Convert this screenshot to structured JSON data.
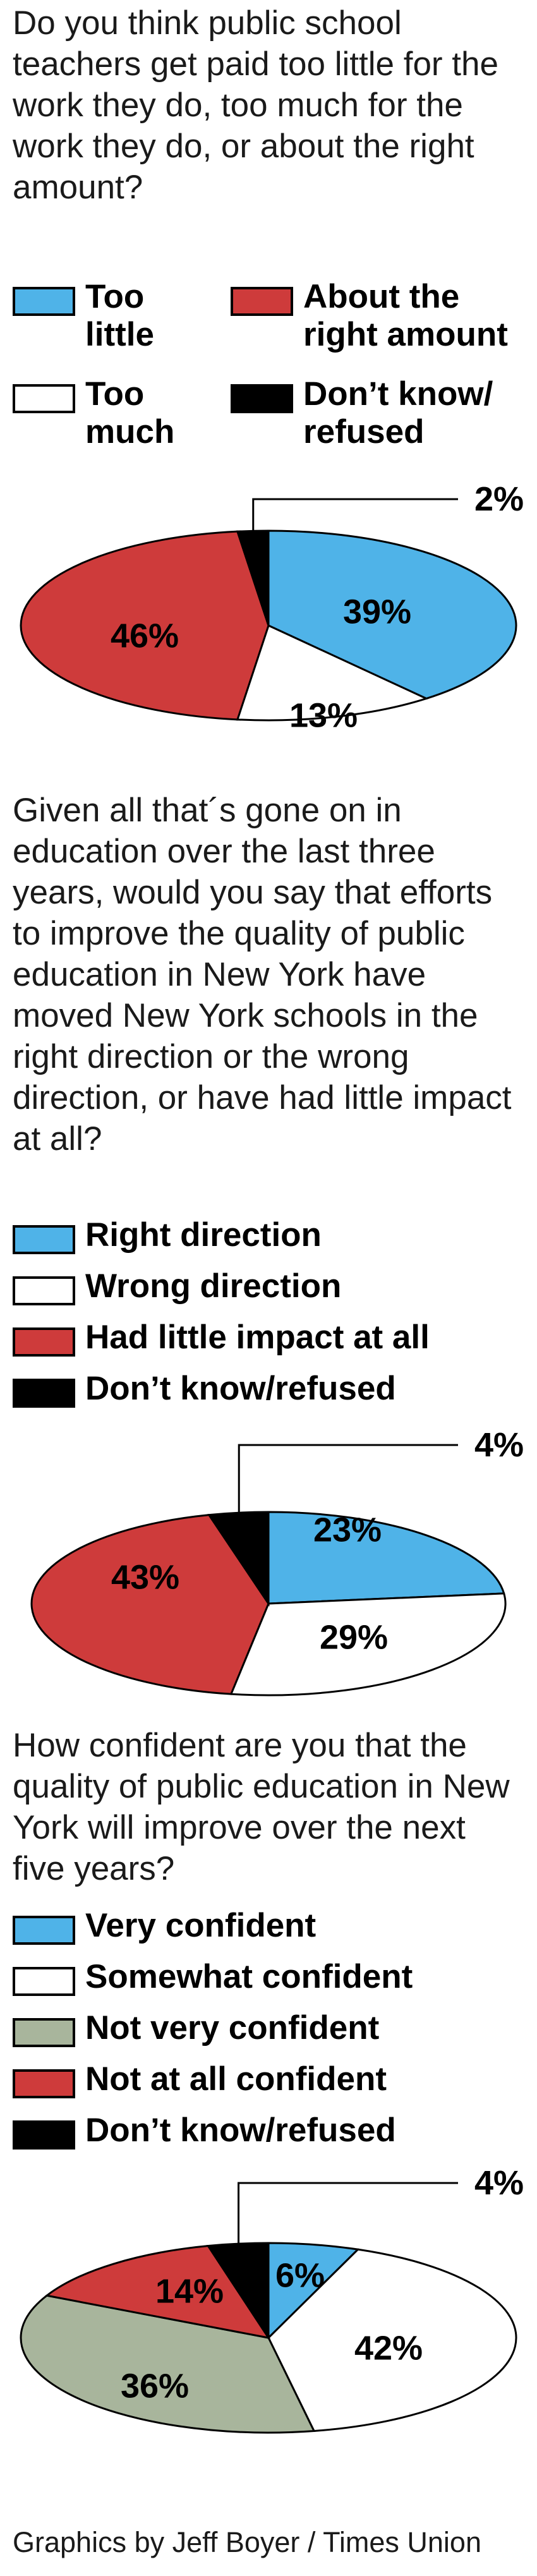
{
  "colors": {
    "blue": "#4FB3E8",
    "red": "#CE3B3B",
    "white": "#FFFFFF",
    "gray": "#A8B59C",
    "black": "#000000"
  },
  "chart_data": [
    {
      "type": "pie",
      "title": "Do you think public school teachers get paid too little for the work they do, too much for the work they do, or about the right amount?",
      "legend": [
        {
          "label": "Too little",
          "color": "blue"
        },
        {
          "label": "About the right amount",
          "color": "red"
        },
        {
          "label": "Too much",
          "color": "white"
        },
        {
          "label": "Don’t know/ refused",
          "color": "black"
        }
      ],
      "slices": [
        {
          "label": "Too little",
          "value": 39,
          "text": "39%",
          "color": "blue"
        },
        {
          "label": "Too much",
          "value": 13,
          "text": "13%",
          "color": "white"
        },
        {
          "label": "About the right amount",
          "value": 46,
          "text": "46%",
          "color": "red"
        },
        {
          "label": "Don’t know/ refused",
          "value": 2,
          "text": "2%",
          "color": "black"
        }
      ]
    },
    {
      "type": "pie",
      "title": "Given all that´s gone on in education over the last three years, would you say that efforts to improve the quality of public education in New York have moved New York schools in the right direction or the wrong direction, or have had little impact at all?",
      "legend": [
        {
          "label": "Right direction",
          "color": "blue"
        },
        {
          "label": "Wrong direction",
          "color": "white"
        },
        {
          "label": "Had little impact at all",
          "color": "red"
        },
        {
          "label": "Don’t know/refused",
          "color": "black"
        }
      ],
      "slices": [
        {
          "label": "Right direction",
          "value": 23,
          "text": "23%",
          "color": "blue"
        },
        {
          "label": "Wrong direction",
          "value": 29,
          "text": "29%",
          "color": "white"
        },
        {
          "label": "Had little impact at all",
          "value": 43,
          "text": "43%",
          "color": "red"
        },
        {
          "label": "Don’t know/refused",
          "value": 4,
          "text": "4%",
          "color": "black"
        }
      ]
    },
    {
      "type": "pie",
      "title": "How confident are you that the quality of public education in New York will improve over the next five years?",
      "legend": [
        {
          "label": "Very confident",
          "color": "blue"
        },
        {
          "label": "Somewhat confident",
          "color": "white"
        },
        {
          "label": "Not very confident",
          "color": "gray"
        },
        {
          "label": "Not at all confident",
          "color": "red"
        },
        {
          "label": "Don’t know/refused",
          "color": "black"
        }
      ],
      "slices": [
        {
          "label": "Very confident",
          "value": 6,
          "text": "6%",
          "color": "blue"
        },
        {
          "label": "Somewhat confident",
          "value": 42,
          "text": "42%",
          "color": "white"
        },
        {
          "label": "Not very confident",
          "value": 36,
          "text": "36%",
          "color": "gray"
        },
        {
          "label": "Not at all confident",
          "value": 14,
          "text": "14%",
          "color": "red"
        },
        {
          "label": "Don’t know/refused",
          "value": 4,
          "text": "4%",
          "color": "black"
        }
      ]
    }
  ],
  "credit": "Graphics by Jeff Boyer / Times Union"
}
